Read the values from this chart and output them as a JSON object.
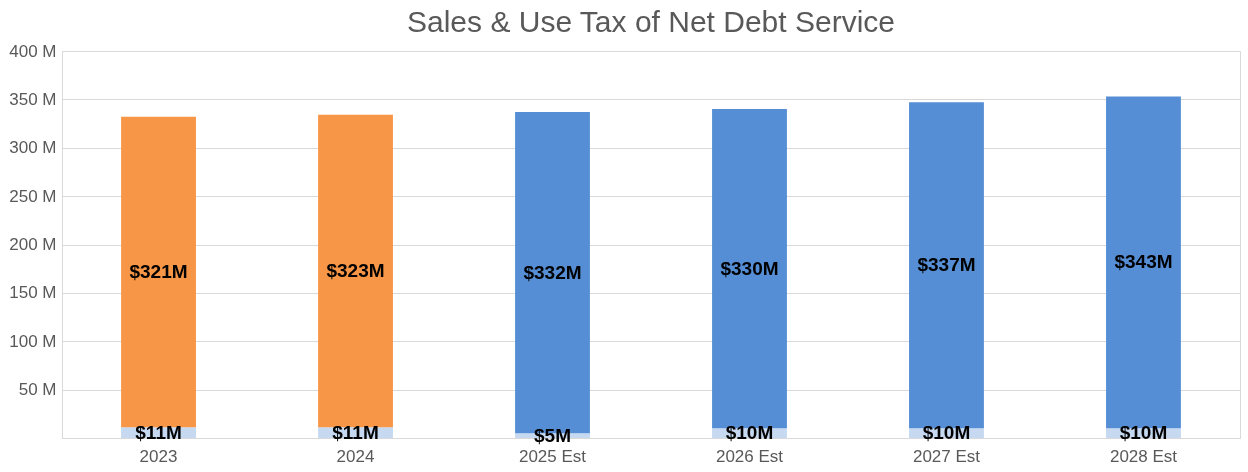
{
  "chart_data": {
    "type": "bar",
    "title": "Sales & Use Tax of Net Debt Service",
    "categories": [
      "2023",
      "2024",
      "2025 Est",
      "2026 Est",
      "2027 Est",
      "2028 Est"
    ],
    "stacked": true,
    "series": [
      {
        "color": "#c6d9f0",
        "values": [
          11,
          11,
          5,
          10,
          10,
          10
        ],
        "value_labels": [
          "$11M",
          "$11M",
          "$5M",
          "$10M",
          "$10M",
          "$10M"
        ]
      },
      {
        "colors": [
          "#f79646",
          "#f79646",
          "#558ed5",
          "#558ed5",
          "#558ed5",
          "#558ed5"
        ],
        "values": [
          321,
          323,
          332,
          330,
          337,
          343
        ],
        "value_labels": [
          "$321M",
          "$323M",
          "$332M",
          "$330M",
          "$337M",
          "$343M"
        ]
      }
    ],
    "ylim": [
      0,
      400
    ],
    "yticks": [
      {
        "value": 0,
        "label": null
      },
      {
        "value": 50,
        "label": "50 M"
      },
      {
        "value": 100,
        "label": "100 M"
      },
      {
        "value": 150,
        "label": "150 M"
      },
      {
        "value": 200,
        "label": "200 M"
      },
      {
        "value": 250,
        "label": "250 M"
      },
      {
        "value": 300,
        "label": "300 M"
      },
      {
        "value": 350,
        "label": "350 M"
      },
      {
        "value": 400,
        "label": "400 M"
      }
    ],
    "grid": "y",
    "legend": false
  }
}
